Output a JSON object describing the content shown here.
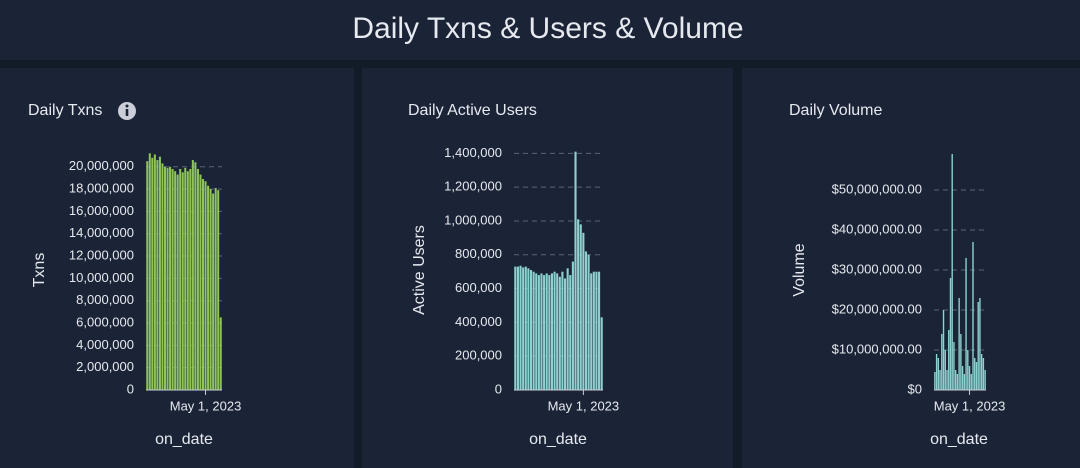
{
  "title": "Daily Txns & Users & Volume",
  "chart_data": [
    {
      "type": "bar",
      "title": "Daily Txns",
      "x_label": "on_date",
      "y_label": "Txns",
      "color": "#8fc45a",
      "grid": true,
      "categories": [
        null,
        null,
        null,
        null,
        null,
        null,
        null,
        null,
        null,
        null,
        null,
        null,
        null,
        null,
        null,
        null,
        null,
        null,
        null,
        null,
        null,
        null,
        null,
        "May 1, 2023",
        null,
        null,
        null,
        null,
        null,
        null
      ],
      "values": [
        20500000,
        21200000,
        20800000,
        21100000,
        20600000,
        20900000,
        20300000,
        20000000,
        19900000,
        20000000,
        19800000,
        19600000,
        19300000,
        19800000,
        19500000,
        19900000,
        19600000,
        19800000,
        20600000,
        20400000,
        19800000,
        19300000,
        18900000,
        18700000,
        18300000,
        18000000,
        17600000,
        18100000,
        17900000,
        6500000
      ],
      "ylim": [
        0,
        21500000
      ],
      "yticks": [
        0,
        {
          "value": 2000000,
          "label": "2,000,000"
        },
        {
          "value": 4000000,
          "label": "4,000,000"
        },
        {
          "value": 6000000,
          "label": "6,000,000"
        },
        {
          "value": 8000000,
          "label": "8,000,000"
        },
        {
          "value": 10000000,
          "label": "10,000,000"
        },
        {
          "value": 12000000,
          "label": "12,000,000"
        },
        {
          "value": 14000000,
          "label": "14,000,000"
        },
        {
          "value": 16000000,
          "label": "16,000,000"
        },
        {
          "value": 18000000,
          "label": "18,000,000"
        },
        {
          "value": 20000000,
          "label": "20,000,000"
        }
      ]
    },
    {
      "type": "bar",
      "title": "Daily Active Users",
      "x_label": "on_date",
      "y_label": "Active Users",
      "color": "#8dd2d0",
      "grid": true,
      "categories": [
        null,
        null,
        null,
        null,
        null,
        null,
        null,
        null,
        null,
        null,
        null,
        null,
        null,
        null,
        null,
        null,
        null,
        null,
        null,
        null,
        null,
        null,
        null,
        null,
        null,
        null,
        "May 1, 2023",
        null,
        null,
        null,
        null,
        null,
        null,
        null
      ],
      "values": [
        730000,
        730000,
        735000,
        725000,
        730000,
        720000,
        710000,
        700000,
        690000,
        680000,
        690000,
        680000,
        690000,
        680000,
        690000,
        700000,
        690000,
        670000,
        700000,
        660000,
        720000,
        680000,
        760000,
        1410000,
        1010000,
        980000,
        930000,
        820000,
        800000,
        690000,
        700000,
        700000,
        700000,
        430000
      ],
      "ylim": [
        0,
        1420000
      ],
      "yticks": [
        0,
        {
          "value": 200000,
          "label": "200,000"
        },
        {
          "value": 400000,
          "label": "400,000"
        },
        {
          "value": 600000,
          "label": "600,000"
        },
        {
          "value": 800000,
          "label": "800,000"
        },
        {
          "value": 1000000,
          "label": "1,000,000"
        },
        {
          "value": 1200000,
          "label": "1,200,000"
        },
        {
          "value": 1400000,
          "label": "1,400,000"
        }
      ]
    },
    {
      "type": "bar",
      "title": "Daily Volume",
      "x_label": "on_date",
      "y_label": "Volume",
      "color": "#8dd2d0",
      "grid": true,
      "categories": [
        null,
        null,
        null,
        null,
        null,
        null,
        null,
        null,
        null,
        null,
        null,
        null,
        null,
        null,
        null,
        null,
        null,
        null,
        null,
        null,
        "May 1, 2023",
        null,
        null,
        null,
        null,
        null,
        null,
        null,
        null,
        null
      ],
      "values": [
        4500000,
        9000000,
        8000000,
        5000000,
        14000000,
        20000000,
        10000000,
        5000000,
        15000000,
        28000000,
        59000000,
        12000000,
        5000000,
        4000000,
        23000000,
        14000000,
        6000000,
        4000000,
        33000000,
        10000000,
        6000000,
        4000000,
        37000000,
        8000000,
        7000000,
        22000000,
        23000000,
        9000000,
        8000000,
        5000000
      ],
      "ylim": [
        0,
        60000000
      ],
      "yticks": [
        {
          "value": 0,
          "label": "$0"
        },
        {
          "value": 10000000,
          "label": "$10,000,000.00"
        },
        {
          "value": 20000000,
          "label": "$20,000,000.00"
        },
        {
          "value": 30000000,
          "label": "$30,000,000.00"
        },
        {
          "value": 40000000,
          "label": "$40,000,000.00"
        },
        {
          "value": 50000000,
          "label": "$50,000,000.00"
        }
      ]
    }
  ]
}
